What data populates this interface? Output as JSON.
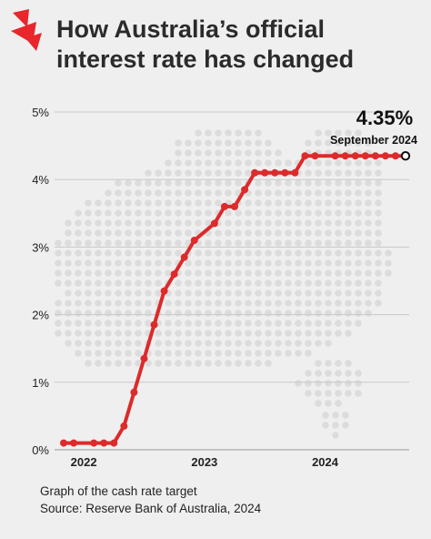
{
  "brand": {
    "logo_icon": "sbs-logo-icon",
    "color": "#e8262c"
  },
  "header": {
    "title_line1": "How Australia’s official",
    "title_line2": "interest rate has changed"
  },
  "chart_data": {
    "type": "line",
    "title": "How Australia’s official interest rate has changed",
    "xlabel": "",
    "ylabel": "",
    "x_tick_labels": [
      "2022",
      "2023",
      "2024"
    ],
    "y_tick_labels": [
      "0%",
      "1%",
      "2%",
      "3%",
      "4%",
      "5%"
    ],
    "ylim": [
      0,
      5
    ],
    "grid": true,
    "line_color": "#dd2a2a",
    "series": [
      {
        "name": "",
        "x": [
          "2021-11",
          "2021-12",
          "2022-02",
          "2022-03",
          "2022-04",
          "2022-05",
          "2022-06",
          "2022-07",
          "2022-08",
          "2022-09",
          "2022-10",
          "2022-11",
          "2022-12",
          "2023-02",
          "2023-03",
          "2023-04",
          "2023-05",
          "2023-06",
          "2023-07",
          "2023-08",
          "2023-09",
          "2023-10",
          "2023-11",
          "2023-12",
          "2024-02",
          "2024-03",
          "2024-04",
          "2024-05",
          "2024-06",
          "2024-07",
          "2024-08",
          "2024-09"
        ],
        "values": [
          0.1,
          0.1,
          0.1,
          0.1,
          0.1,
          0.35,
          0.85,
          1.35,
          1.85,
          2.35,
          2.6,
          2.85,
          3.1,
          3.35,
          3.6,
          3.6,
          3.85,
          4.1,
          4.1,
          4.1,
          4.1,
          4.1,
          4.35,
          4.35,
          4.35,
          4.35,
          4.35,
          4.35,
          4.35,
          4.35,
          4.35,
          4.35
        ]
      }
    ],
    "annotation": {
      "value": "4.35%",
      "label": "September 2024"
    }
  },
  "footer": {
    "line1": "Graph of the cash rate target",
    "line2": "Source: Reserve Bank of Australia, 2024"
  }
}
